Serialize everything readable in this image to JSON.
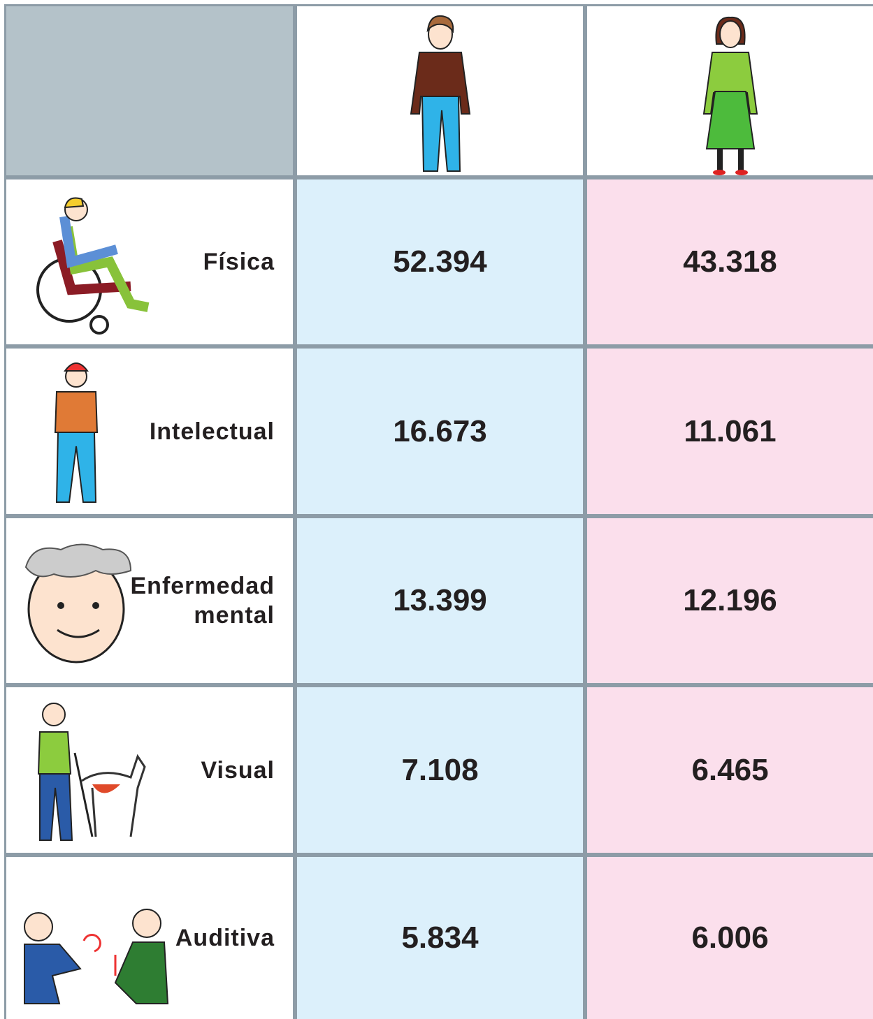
{
  "table": {
    "rows": [
      {
        "label": "Física",
        "men": "52.394",
        "women": "43.318"
      },
      {
        "label": "Intelectual",
        "men": "16.673",
        "women": "11.061"
      },
      {
        "label": "Enfermedad\nmental",
        "men": "13.399",
        "women": "12.196"
      },
      {
        "label": "Visual",
        "men": "7.108",
        "women": "6.465"
      },
      {
        "label": "Auditiva",
        "men": "5.834",
        "women": "6.006"
      }
    ]
  }
}
